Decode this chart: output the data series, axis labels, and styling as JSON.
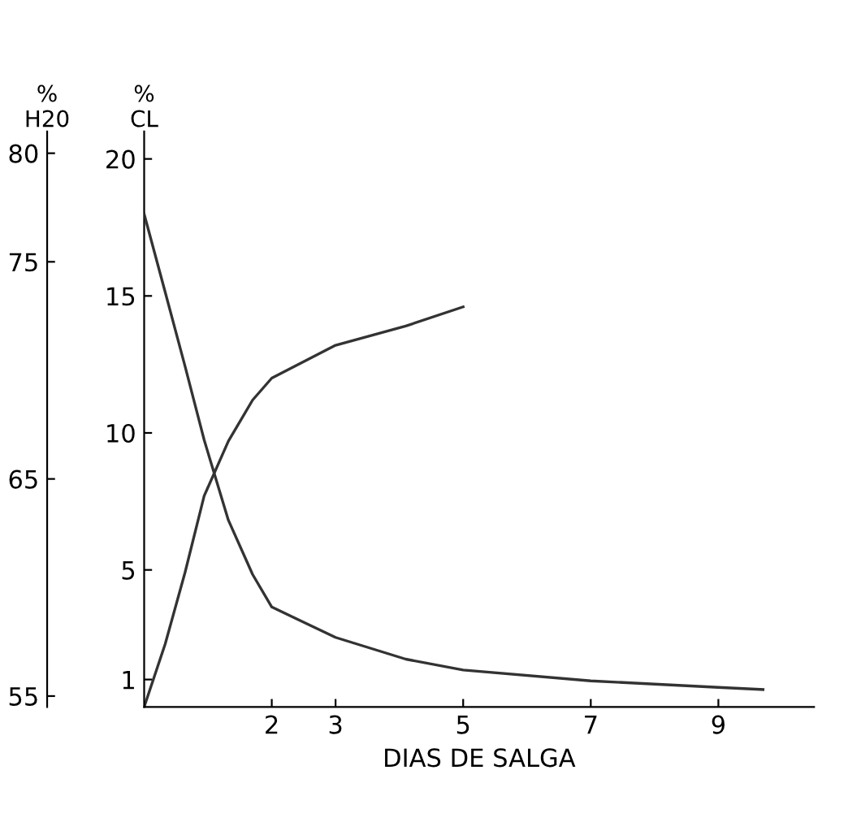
{
  "chart_data": {
    "type": "line",
    "xlabel": "DIAS DE SALGA",
    "ylabel": "%\nCL",
    "y2label": "%\nH20",
    "xlim": [
      0,
      10.5
    ],
    "xticks": [
      2,
      3,
      5,
      7,
      9
    ],
    "ylim": [
      0,
      21
    ],
    "yticks": [
      1,
      5,
      10,
      15,
      20
    ],
    "y2lim": [
      54.5,
      81
    ],
    "y2ticks": [
      55,
      65,
      75,
      80
    ],
    "grid": false,
    "legend": false,
    "marker": "none",
    "line_style": "solid",
    "series": [
      {
        "color": "#333333",
        "axis": "y2",
        "x": [
          0,
          0.33,
          0.64,
          0.94,
          1.32,
          1.7,
          2,
          3,
          4.1,
          5,
          7,
          9,
          9.7
        ],
        "values": [
          77.2,
          73.6,
          70.2,
          66.8,
          63.1,
          60.6,
          59.1,
          57.7,
          56.7,
          56.2,
          55.7,
          55.4,
          55.3
        ]
      },
      {
        "color": "#333333",
        "x": [
          0,
          0.33,
          0.64,
          0.94,
          1.32,
          1.7,
          2,
          3,
          4.1,
          5
        ],
        "values": [
          0,
          2.3,
          4.9,
          7.7,
          9.7,
          11.2,
          12.0,
          13.2,
          13.9,
          14.6
        ]
      }
    ]
  }
}
